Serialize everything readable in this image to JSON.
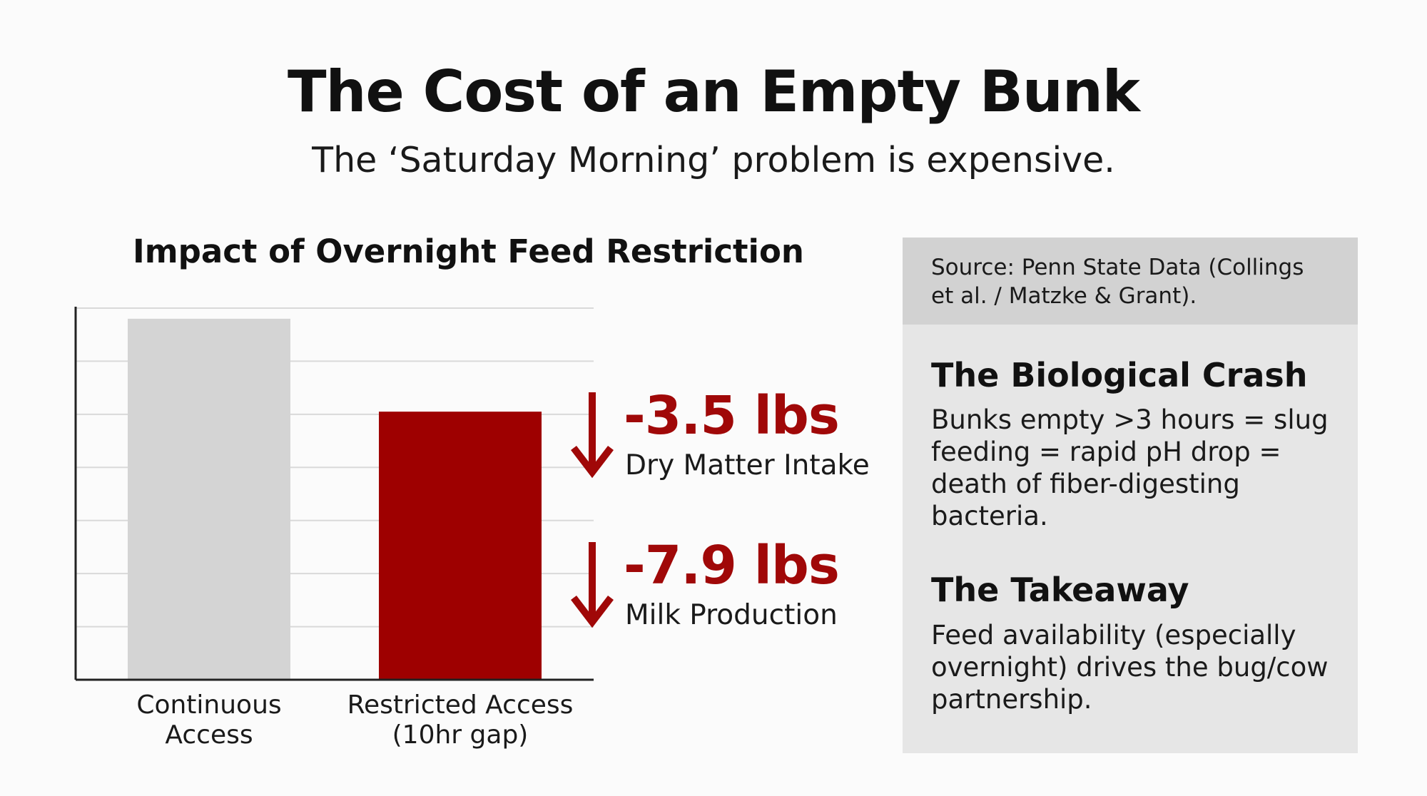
{
  "header": {
    "title": "The Cost of an Empty Bunk",
    "subtitle": "The ‘Saturday Morning’ problem is expensive."
  },
  "chart_data": {
    "type": "bar",
    "title": "Impact of Overnight Feed Restriction",
    "categories": [
      "Continuous Access",
      "Restricted Access (10hr gap)"
    ],
    "category_lines": [
      [
        "Continuous",
        "Access"
      ],
      [
        "Restricted Access",
        "(10hr gap)"
      ]
    ],
    "values": [
      6.8,
      5.05
    ],
    "ylim": [
      0,
      7
    ],
    "grid": true,
    "xlabel": "",
    "ylabel": "",
    "bar_colors": [
      "#d4d4d4",
      "#9e0000"
    ],
    "annotations": [
      {
        "value": "-3.5 lbs",
        "label": "Dry Matter Intake"
      },
      {
        "value": "-7.9 lbs",
        "label": "Milk Production"
      }
    ]
  },
  "side_panel": {
    "source": "Source: Penn State Data (Collings et al. / Matzke & Grant).",
    "sections": [
      {
        "heading": "The Biological Crash",
        "body": "Bunks empty >3 hours = slug feeding = rapid pH drop = death of fiber-digesting bacteria."
      },
      {
        "heading": "The Takeaway",
        "body": "Feed availability (especially overnight) drives the bug/cow partnership."
      }
    ]
  },
  "colors": {
    "accent_red": "#a00808",
    "bar_gray": "#d4d4d4",
    "panel_bg": "#e6e6e6",
    "source_bg": "#d2d2d2"
  },
  "icons": {
    "delta_arrow": "down-arrow-icon"
  }
}
